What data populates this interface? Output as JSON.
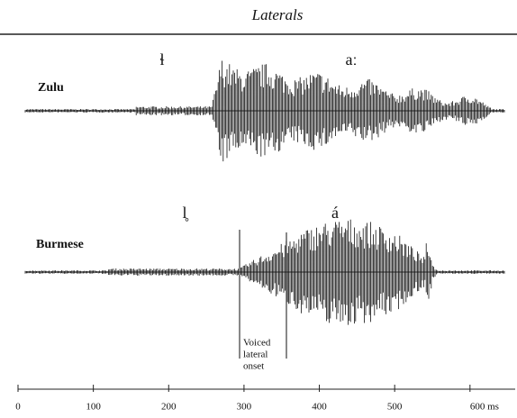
{
  "title": "Laterals",
  "rows": [
    {
      "label": "Zulu",
      "segments": [
        "ɬ",
        "aː"
      ]
    },
    {
      "label": "Burmese",
      "segments": [
        "l̥",
        "á"
      ]
    }
  ],
  "annotation": [
    "Voiced",
    "lateral",
    "onset"
  ],
  "axis": {
    "xlim": [
      0,
      660
    ],
    "xticks": [
      0,
      100,
      200,
      300,
      400,
      500,
      {
        "value": 600,
        "label": "600 ms"
      }
    ]
  }
}
